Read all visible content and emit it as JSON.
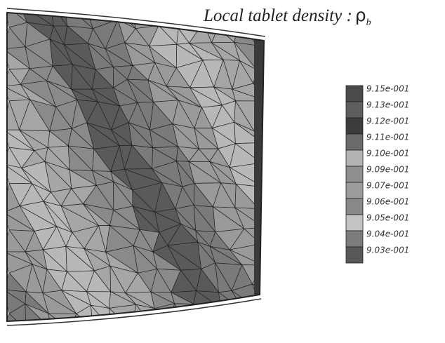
{
  "title": {
    "text": "Local tablet density :",
    "symbol": "ρ",
    "subscript": "b"
  },
  "legend": {
    "labels": [
      "9.15e-001",
      "9.13e-001",
      "9.12e-001",
      "9.11e-001",
      "9.10e-001",
      "9.09e-001",
      "9.07e-001",
      "9.06e-001",
      "9.05e-001",
      "9.04e-001",
      "9.03e-001"
    ],
    "colors": [
      "#4a4a4a",
      "#5e5e5e",
      "#3c3c3c",
      "#6a6a6a",
      "#b4b4b4",
      "#8e8e8e",
      "#9c9c9c",
      "#888888",
      "#c4c4c4",
      "#7c7c7c",
      "#585858"
    ]
  }
}
